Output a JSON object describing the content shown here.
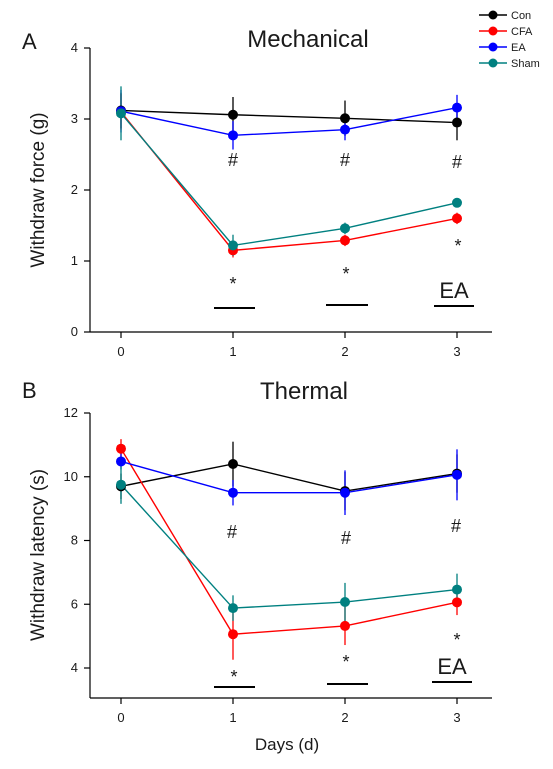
{
  "chart_data": [
    {
      "type": "line",
      "panel": "A",
      "title": "Mechanical",
      "xlabel": "",
      "ylabel": "Withdraw force (g)",
      "x": [
        0,
        1,
        2,
        3
      ],
      "xticks": [
        "0",
        "1",
        "2",
        "3"
      ],
      "ylim": [
        0,
        4
      ],
      "yticks": [
        "0",
        "1",
        "2",
        "3",
        "4"
      ],
      "grid": false,
      "legend_position": "top-right",
      "series": [
        {
          "name": "Con",
          "color": "#000000",
          "values": [
            3.12,
            3.06,
            3.01,
            2.95
          ],
          "errors": [
            0.25,
            0.25,
            0.25,
            0.25
          ]
        },
        {
          "name": "CFA",
          "color": "#ff0000",
          "values": [
            3.1,
            1.15,
            1.29,
            1.6
          ],
          "errors": [
            0.25,
            0.1,
            0.08,
            0.08
          ]
        },
        {
          "name": "EA",
          "color": "#0000ff",
          "values": [
            3.11,
            2.77,
            2.85,
            3.16
          ],
          "errors": [
            0.3,
            0.2,
            0.15,
            0.18
          ]
        },
        {
          "name": "Sham",
          "color": "#008080",
          "values": [
            3.08,
            1.22,
            1.46,
            1.82
          ],
          "errors": [
            0.38,
            0.15,
            0.08,
            0.06
          ]
        }
      ],
      "annotations": {
        "hash": {
          "symbol": "#",
          "x": [
            1,
            2,
            3
          ]
        },
        "star": {
          "symbol": "*",
          "x": [
            1,
            2,
            3
          ]
        },
        "ea_label": "EA"
      }
    },
    {
      "type": "line",
      "panel": "B",
      "title": "Thermal",
      "xlabel": "Days (d)",
      "ylabel": "Withdraw latency (s)",
      "x": [
        0,
        1,
        2,
        3
      ],
      "xticks": [
        "0",
        "1",
        "2",
        "3"
      ],
      "ylim": [
        3,
        12
      ],
      "yticks": [
        "4",
        "6",
        "8",
        "10",
        "12"
      ],
      "grid": false,
      "series": [
        {
          "name": "Con",
          "color": "#000000",
          "values": [
            9.7,
            10.4,
            9.55,
            10.1
          ],
          "errors": [
            0.4,
            0.7,
            0.6,
            0.6
          ]
        },
        {
          "name": "CFA",
          "color": "#ff0000",
          "values": [
            10.88,
            5.06,
            5.32,
            6.06
          ],
          "errors": [
            0.3,
            0.8,
            0.6,
            0.4
          ]
        },
        {
          "name": "EA",
          "color": "#0000ff",
          "values": [
            10.48,
            9.5,
            9.5,
            10.06
          ],
          "errors": [
            0.25,
            0.4,
            0.7,
            0.8
          ]
        },
        {
          "name": "Sham",
          "color": "#008080",
          "values": [
            9.75,
            5.88,
            6.07,
            6.46
          ],
          "errors": [
            0.6,
            0.4,
            0.6,
            0.5
          ]
        }
      ],
      "annotations": {
        "hash": {
          "symbol": "#",
          "x": [
            1,
            2,
            3
          ]
        },
        "star": {
          "symbol": "*",
          "x": [
            1,
            2,
            3
          ]
        },
        "ea_label": "EA"
      }
    }
  ]
}
